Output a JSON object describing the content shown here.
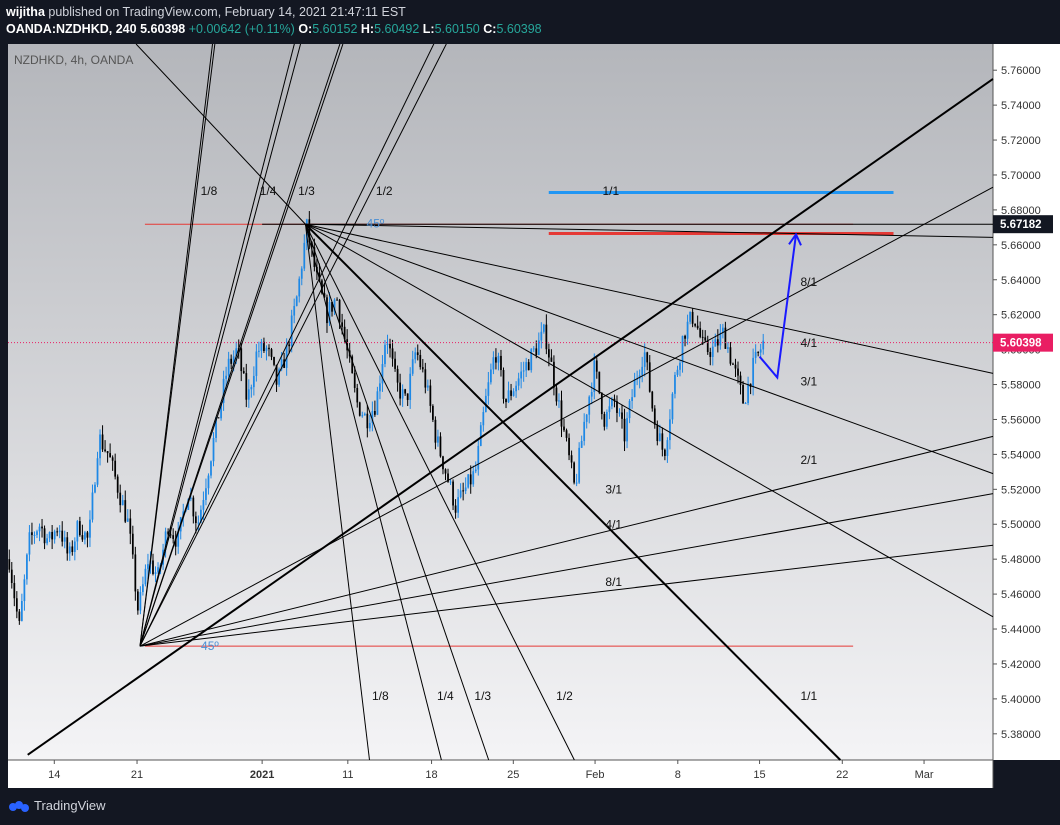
{
  "header": {
    "author": "wijitha",
    "published_text": "published on TradingView.com, February 14, 2021 21:47:11 EST",
    "symbol": "OANDA:NZDHKD, 240",
    "last": "5.60398",
    "change": "+0.00642 (+0.11%)",
    "o_label": "O:",
    "o_value": "5.60152",
    "h_label": "H:",
    "h_value": "5.60492",
    "l_label": "L:",
    "l_value": "5.60150",
    "c_label": "C:",
    "c_value": "5.60398"
  },
  "footer": {
    "brand": "TradingView"
  },
  "colors": {
    "up": "#1e88e5",
    "down": "#000000",
    "bg_top": "#b4b6bb",
    "bg_bottom": "#f4f4f6",
    "fan": "#000000",
    "red_line": "#e53935",
    "target_blue": "#2196f3",
    "arrow": "#1a1aff",
    "price_badge": "#e91e63"
  },
  "chart_data": {
    "type": "candlestick",
    "title": "NZDHKD, 4h, OANDA",
    "ylim": [
      5.365,
      5.775
    ],
    "y_ticks": [
      "5.76000",
      "5.74000",
      "5.72000",
      "5.70000",
      "5.68000",
      "5.66000",
      "5.64000",
      "5.62000",
      "5.60000",
      "5.58000",
      "5.56000",
      "5.54000",
      "5.52000",
      "5.50000",
      "5.48000",
      "5.46000",
      "5.44000",
      "5.42000",
      "5.40000",
      "5.38000"
    ],
    "x_ticks": [
      "14",
      "21",
      "2021",
      "11",
      "18",
      "25",
      "Feb",
      "8",
      "15",
      "22",
      "Mar"
    ],
    "price_badges": [
      {
        "label": "5.67182",
        "value": 5.67182,
        "style": "dark"
      },
      {
        "label": "5.60398",
        "value": 5.60398,
        "style": "pink"
      }
    ],
    "close_path": [
      [
        5.48,
        0
      ],
      [
        5.44,
        1
      ],
      [
        5.49,
        2
      ],
      [
        5.5,
        3
      ],
      [
        5.49,
        4
      ],
      [
        5.5,
        5
      ],
      [
        5.48,
        6
      ],
      [
        5.5,
        7
      ],
      [
        5.49,
        8
      ],
      [
        5.55,
        9
      ],
      [
        5.54,
        10
      ],
      [
        5.52,
        11
      ],
      [
        5.5,
        12
      ],
      [
        5.45,
        13
      ],
      [
        5.48,
        14
      ],
      [
        5.47,
        15
      ],
      [
        5.5,
        16
      ],
      [
        5.49,
        17
      ],
      [
        5.52,
        18
      ],
      [
        5.5,
        19
      ],
      [
        5.53,
        20
      ],
      [
        5.56,
        21
      ],
      [
        5.59,
        22
      ],
      [
        5.6,
        23
      ],
      [
        5.57,
        24
      ],
      [
        5.6,
        25
      ],
      [
        5.6,
        26
      ],
      [
        5.58,
        27
      ],
      [
        5.6,
        28
      ],
      [
        5.63,
        29
      ],
      [
        5.67,
        30
      ],
      [
        5.64,
        31
      ],
      [
        5.62,
        32
      ],
      [
        5.63,
        33
      ],
      [
        5.6,
        34
      ],
      [
        5.57,
        35
      ],
      [
        5.56,
        36
      ],
      [
        5.57,
        37
      ],
      [
        5.61,
        38
      ],
      [
        5.58,
        39
      ],
      [
        5.57,
        40
      ],
      [
        5.6,
        41
      ],
      [
        5.58,
        42
      ],
      [
        5.55,
        43
      ],
      [
        5.53,
        44
      ],
      [
        5.51,
        45
      ],
      [
        5.52,
        46
      ],
      [
        5.53,
        47
      ],
      [
        5.57,
        48
      ],
      [
        5.6,
        49
      ],
      [
        5.57,
        50
      ],
      [
        5.58,
        51
      ],
      [
        5.59,
        52
      ],
      [
        5.6,
        53
      ],
      [
        5.61,
        54
      ],
      [
        5.58,
        55
      ],
      [
        5.55,
        56
      ],
      [
        5.52,
        57
      ],
      [
        5.56,
        58
      ],
      [
        5.59,
        59
      ],
      [
        5.56,
        60
      ],
      [
        5.57,
        61
      ],
      [
        5.55,
        62
      ],
      [
        5.58,
        63
      ],
      [
        5.6,
        64
      ],
      [
        5.56,
        65
      ],
      [
        5.54,
        66
      ],
      [
        5.58,
        67
      ],
      [
        5.61,
        68
      ],
      [
        5.62,
        69
      ],
      [
        5.6,
        70
      ],
      [
        5.6,
        71
      ],
      [
        5.61,
        72
      ],
      [
        5.59,
        73
      ],
      [
        5.57,
        74
      ],
      [
        5.59,
        75
      ],
      [
        5.604,
        76
      ]
    ],
    "horizontal_lines": [
      {
        "name": "swing-high-red",
        "value": 5.6718,
        "color": "#e53935",
        "x_from": 0.139,
        "x_to": 0.858
      },
      {
        "name": "swing-low-red",
        "value": 5.4302,
        "color": "#e53935",
        "x_from": 0.139,
        "x_to": 0.858
      },
      {
        "name": "target-blue",
        "value": 5.69,
        "color": "#2196f3",
        "x_from": 0.549,
        "x_to": 0.899
      },
      {
        "name": "target-red",
        "value": 5.6665,
        "color": "#e53935",
        "x_from": 0.549,
        "x_to": 0.899
      }
    ],
    "fan_labels": {
      "upper_left": [
        "1/8",
        "1/4",
        "1/3",
        "1/2",
        "1/1"
      ],
      "upper_right": [
        "8/1",
        "4/1",
        "3/1",
        "2/1"
      ],
      "lower": [
        "3/1",
        "4/1",
        "8/1"
      ],
      "lower_bottom": [
        "1/8",
        "1/4",
        "1/3",
        "1/2",
        "1/1"
      ],
      "angle": "45º"
    }
  }
}
